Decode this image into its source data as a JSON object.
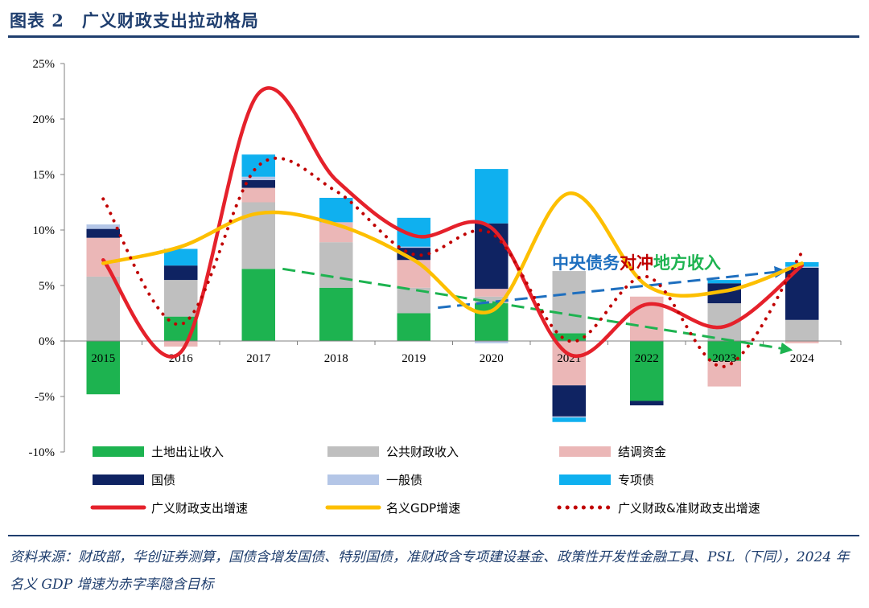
{
  "header": {
    "title": "图表 2　广义财政支出拉动格局"
  },
  "source": {
    "text": "资料来源：财政部，华创证券测算，国债含增发国债、特别国债，准财政含专项建设基金、政策性开发性金融工具、PSL（下同），2024 年名义 GDP 增速为赤字率隐含目标"
  },
  "chart_data": {
    "type": "bar",
    "stacked": true,
    "categories": [
      "2015",
      "2016",
      "2017",
      "2018",
      "2019",
      "2020",
      "2021",
      "2022",
      "2023",
      "2024"
    ],
    "ylim": [
      -10,
      25
    ],
    "yticks": [
      -10,
      -5,
      0,
      5,
      10,
      15,
      20,
      25
    ],
    "ytick_labels": [
      "-10%",
      "-5%",
      "0%",
      "5%",
      "10%",
      "15%",
      "20%",
      "25%"
    ],
    "grid": false,
    "legend_position": "bottom",
    "series": [
      {
        "name": "土地出让收入",
        "kind": "bar",
        "color": "#1db350",
        "values": [
          -4.8,
          2.2,
          6.5,
          4.8,
          2.5,
          3.4,
          0.7,
          -5.4,
          -1.8,
          0
        ]
      },
      {
        "name": "公共财政收入",
        "kind": "bar",
        "color": "#bfbfbf",
        "values": [
          5.8,
          3.3,
          6.0,
          4.1,
          2.3,
          0.6,
          5.6,
          0,
          3.4,
          1.9
        ]
      },
      {
        "name": "结调资金",
        "kind": "bar",
        "color": "#ebb7b7",
        "values": [
          3.5,
          -0.5,
          1.3,
          1.8,
          2.5,
          0.7,
          -4.0,
          4.0,
          -2.3,
          -0.2
        ]
      },
      {
        "name": "国债",
        "kind": "bar",
        "color": "#0f2362",
        "values": [
          0.8,
          1.3,
          0.7,
          0,
          1.1,
          5.9,
          -2.8,
          -0.4,
          1.8,
          4.7
        ]
      },
      {
        "name": "一般债",
        "kind": "bar",
        "color": "#b4c6e7",
        "values": [
          0.4,
          0,
          0.3,
          0,
          0.1,
          -0.2,
          -0.1,
          0,
          0,
          0.1
        ]
      },
      {
        "name": "专项债",
        "kind": "bar",
        "color": "#0fb0ef",
        "values": [
          0,
          1.5,
          2.0,
          2.2,
          2.6,
          4.9,
          -0.4,
          0,
          0.3,
          0.4
        ]
      },
      {
        "name": "广义财政支出增速",
        "kind": "line",
        "color": "#e5212b",
        "values": [
          7.3,
          -1.0,
          22.3,
          14.5,
          9.5,
          10.2,
          -1.2,
          3.3,
          1.3,
          6.8
        ]
      },
      {
        "name": "名义GDP增速",
        "kind": "line",
        "color": "#fdbf00",
        "values": [
          7.0,
          8.5,
          11.5,
          10.5,
          7.3,
          2.7,
          13.3,
          5.0,
          4.5,
          7.0
        ]
      },
      {
        "name": "广义财政&准财政支出增速",
        "kind": "dotted",
        "color": "#c00000",
        "values": [
          12.8,
          1.5,
          15.8,
          13.5,
          7.8,
          9.7,
          0,
          5.8,
          -2.3,
          8.0
        ]
      }
    ],
    "annotations": [
      {
        "parts": [
          {
            "text": "中央债务",
            "color": "#1e6fbf"
          },
          {
            "text": "对冲",
            "color": "#c00000"
          },
          {
            "text": "地方收入",
            "color": "#1db350"
          }
        ]
      }
    ]
  }
}
